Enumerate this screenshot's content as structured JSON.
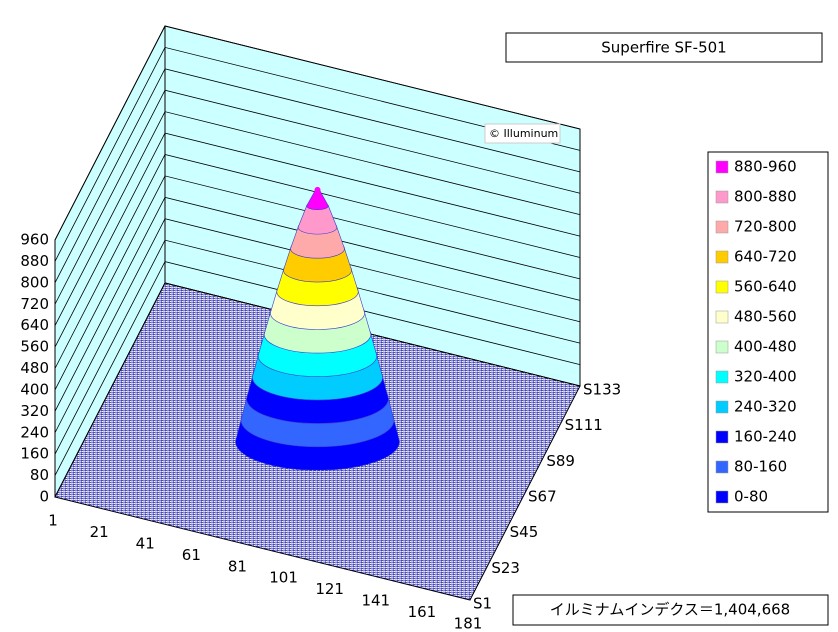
{
  "chart_data": {
    "type": "surface3d",
    "title": "Superfire SF-501",
    "annotation": "© Illuminum",
    "index_label": "イルミナムインデクス＝1,404,668",
    "zlim": [
      0,
      960
    ],
    "zticks": [
      0,
      80,
      160,
      240,
      320,
      400,
      480,
      560,
      640,
      720,
      800,
      880,
      960
    ],
    "x_categories": [
      "1",
      "21",
      "41",
      "61",
      "81",
      "101",
      "121",
      "141",
      "161",
      "181"
    ],
    "y_categories": [
      "S1",
      "S23",
      "S45",
      "S67",
      "S89",
      "S111",
      "S133"
    ],
    "peak": 940,
    "legend": [
      {
        "name": "880-960",
        "range": [
          880,
          960
        ],
        "color": "#ff00ff"
      },
      {
        "name": "800-880",
        "range": [
          800,
          880
        ],
        "color": "#ff99cc"
      },
      {
        "name": "720-800",
        "range": [
          720,
          800
        ],
        "color": "#ffaaaa"
      },
      {
        "name": "640-720",
        "range": [
          640,
          720
        ],
        "color": "#ffcc00"
      },
      {
        "name": "560-640",
        "range": [
          560,
          640
        ],
        "color": "#ffff00"
      },
      {
        "name": "480-560",
        "range": [
          480,
          560
        ],
        "color": "#ffffcc"
      },
      {
        "name": "400-480",
        "range": [
          400,
          480
        ],
        "color": "#ccffcc"
      },
      {
        "name": "320-400",
        "range": [
          320,
          400
        ],
        "color": "#00ffff"
      },
      {
        "name": "240-320",
        "range": [
          240,
          320
        ],
        "color": "#00ccff"
      },
      {
        "name": "160-240",
        "range": [
          160,
          240
        ],
        "color": "#0000ff"
      },
      {
        "name": "80-160",
        "range": [
          80,
          160
        ],
        "color": "#3366ff"
      },
      {
        "name": "0-80",
        "range": [
          0,
          80
        ],
        "color": "#0000ff"
      }
    ]
  }
}
